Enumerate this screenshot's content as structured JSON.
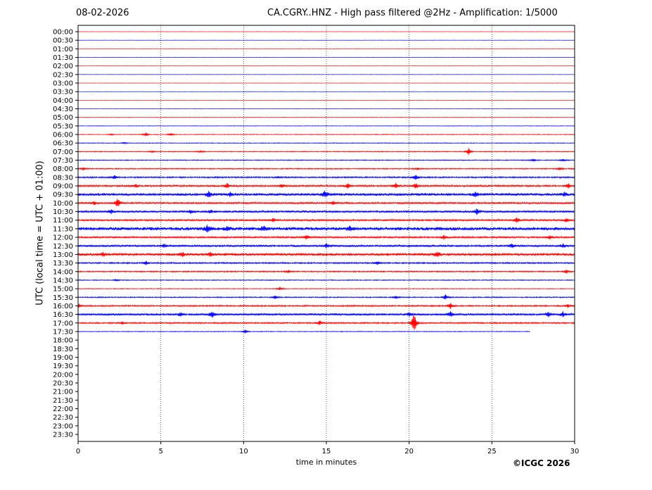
{
  "header": {
    "date": "08-02-2026",
    "title": "CA.CGRY..HNZ - High pass filtered @2Hz - Amplification: 1/5000"
  },
  "footer": {
    "copyright": "©ICGC 2026"
  },
  "chart_data": {
    "type": "line",
    "title": "CA.CGRY..HNZ - High pass filtered @2Hz - Amplification: 1/5000",
    "xlabel": "time in minutes",
    "ylabel": "UTC (local time = UTC + 01:00)",
    "xlim": [
      0,
      30
    ],
    "xticks": [
      0,
      5,
      10,
      15,
      20,
      25,
      30
    ],
    "yticks": [
      "00:00",
      "00:30",
      "01:00",
      "01:30",
      "02:00",
      "02:30",
      "03:00",
      "03:30",
      "04:00",
      "04:30",
      "05:00",
      "05:30",
      "06:00",
      "06:30",
      "07:00",
      "07:30",
      "08:00",
      "08:30",
      "09:00",
      "09:30",
      "10:00",
      "10:30",
      "11:00",
      "11:30",
      "12:00",
      "12:30",
      "13:00",
      "13:30",
      "14:00",
      "14:30",
      "15:00",
      "15:30",
      "16:00",
      "16:30",
      "17:00",
      "17:30",
      "18:00",
      "18:30",
      "19:00",
      "19:30",
      "20:00",
      "20:30",
      "21:00",
      "21:30",
      "22:00",
      "22:30",
      "23:00",
      "23:30"
    ],
    "grid_x": true,
    "colors": {
      "even_rows": "#ff0000",
      "odd_rows": "#0000ff"
    },
    "rows": [
      {
        "label": "00:00",
        "end": 30,
        "noise": 0.2,
        "events": []
      },
      {
        "label": "00:30",
        "end": 30,
        "noise": 0.2,
        "events": []
      },
      {
        "label": "01:00",
        "end": 30,
        "noise": 0.2,
        "events": []
      },
      {
        "label": "01:30",
        "end": 30,
        "noise": 0.2,
        "events": []
      },
      {
        "label": "02:00",
        "end": 30,
        "noise": 0.2,
        "events": []
      },
      {
        "label": "02:30",
        "end": 30,
        "noise": 0.2,
        "events": []
      },
      {
        "label": "03:00",
        "end": 30,
        "noise": 0.2,
        "events": []
      },
      {
        "label": "03:30",
        "end": 30,
        "noise": 0.2,
        "events": []
      },
      {
        "label": "04:00",
        "end": 30,
        "noise": 0.2,
        "events": []
      },
      {
        "label": "04:30",
        "end": 30,
        "noise": 0.2,
        "events": []
      },
      {
        "label": "05:00",
        "end": 30,
        "noise": 0.3,
        "events": []
      },
      {
        "label": "05:30",
        "end": 30,
        "noise": 0.3,
        "events": []
      },
      {
        "label": "06:00",
        "end": 30,
        "noise": 0.4,
        "events": [
          {
            "t": 4.1,
            "a": 3
          },
          {
            "t": 5.6,
            "a": 2.5
          },
          {
            "t": 2.0,
            "a": 1.2
          }
        ]
      },
      {
        "label": "06:30",
        "end": 30,
        "noise": 0.4,
        "events": [
          {
            "t": 2.8,
            "a": 1.2
          }
        ]
      },
      {
        "label": "07:00",
        "end": 30,
        "noise": 0.5,
        "events": [
          {
            "t": 23.6,
            "a": 6
          },
          {
            "t": 4.5,
            "a": 1.5
          },
          {
            "t": 7.4,
            "a": 1.5
          }
        ]
      },
      {
        "label": "07:30",
        "end": 30,
        "noise": 0.5,
        "events": [
          {
            "t": 27.5,
            "a": 2
          },
          {
            "t": 29.3,
            "a": 2
          }
        ]
      },
      {
        "label": "08:00",
        "end": 30,
        "noise": 0.6,
        "events": [
          {
            "t": 0.3,
            "a": 2.5
          },
          {
            "t": 29.1,
            "a": 2.5
          },
          {
            "t": 20.5,
            "a": 2
          }
        ]
      },
      {
        "label": "08:30",
        "end": 30,
        "noise": 0.8,
        "events": [
          {
            "t": 2.2,
            "a": 3
          },
          {
            "t": 20.4,
            "a": 5
          },
          {
            "t": 12.1,
            "a": 1.5
          }
        ]
      },
      {
        "label": "09:00",
        "end": 30,
        "noise": 1.0,
        "events": [
          {
            "t": 3.5,
            "a": 3
          },
          {
            "t": 9.0,
            "a": 4
          },
          {
            "t": 12.3,
            "a": 3
          },
          {
            "t": 16.3,
            "a": 4
          },
          {
            "t": 19.2,
            "a": 4
          },
          {
            "t": 20.4,
            "a": 4
          },
          {
            "t": 29.6,
            "a": 4
          }
        ]
      },
      {
        "label": "09:30",
        "end": 30,
        "noise": 1.5,
        "events": [
          {
            "t": 7.9,
            "a": 5
          },
          {
            "t": 9.2,
            "a": 3
          },
          {
            "t": 14.9,
            "a": 5
          },
          {
            "t": 24.0,
            "a": 4
          },
          {
            "t": 29.4,
            "a": 3
          }
        ]
      },
      {
        "label": "10:00",
        "end": 30,
        "noise": 1.0,
        "events": [
          {
            "t": 1.0,
            "a": 3
          },
          {
            "t": 2.4,
            "a": 8
          },
          {
            "t": 15.4,
            "a": 3
          }
        ]
      },
      {
        "label": "10:30",
        "end": 30,
        "noise": 1.2,
        "events": [
          {
            "t": 2.0,
            "a": 3
          },
          {
            "t": 6.8,
            "a": 3
          },
          {
            "t": 8.0,
            "a": 3
          },
          {
            "t": 24.1,
            "a": 5
          }
        ]
      },
      {
        "label": "11:00",
        "end": 30,
        "noise": 1.0,
        "events": [
          {
            "t": 11.8,
            "a": 3
          },
          {
            "t": 26.5,
            "a": 4
          },
          {
            "t": 29.5,
            "a": 3
          }
        ]
      },
      {
        "label": "11:30",
        "end": 30,
        "noise": 1.8,
        "events": [
          {
            "t": 7.8,
            "a": 6
          },
          {
            "t": 9.0,
            "a": 4
          },
          {
            "t": 11.2,
            "a": 4
          },
          {
            "t": 16.4,
            "a": 4
          }
        ]
      },
      {
        "label": "12:00",
        "end": 30,
        "noise": 1.0,
        "events": [
          {
            "t": 13.8,
            "a": 4
          },
          {
            "t": 22.1,
            "a": 3
          },
          {
            "t": 28.5,
            "a": 3
          }
        ]
      },
      {
        "label": "12:30",
        "end": 30,
        "noise": 1.2,
        "events": [
          {
            "t": 5.2,
            "a": 3
          },
          {
            "t": 15.0,
            "a": 3
          },
          {
            "t": 26.2,
            "a": 3
          },
          {
            "t": 29.3,
            "a": 3
          }
        ]
      },
      {
        "label": "13:00",
        "end": 30,
        "noise": 1.5,
        "events": [
          {
            "t": 1.5,
            "a": 3
          },
          {
            "t": 6.3,
            "a": 3
          },
          {
            "t": 8.0,
            "a": 3
          },
          {
            "t": 21.7,
            "a": 4
          }
        ]
      },
      {
        "label": "13:30",
        "end": 30,
        "noise": 0.8,
        "events": [
          {
            "t": 4.1,
            "a": 3
          },
          {
            "t": 18.1,
            "a": 3
          }
        ]
      },
      {
        "label": "14:00",
        "end": 30,
        "noise": 0.7,
        "events": [
          {
            "t": 29.5,
            "a": 3
          },
          {
            "t": 12.7,
            "a": 2
          }
        ]
      },
      {
        "label": "14:30",
        "end": 30,
        "noise": 0.5,
        "events": [
          {
            "t": 2.3,
            "a": 1.5
          }
        ]
      },
      {
        "label": "15:00",
        "end": 30,
        "noise": 0.4,
        "events": [
          {
            "t": 12.2,
            "a": 3
          }
        ]
      },
      {
        "label": "15:30",
        "end": 30,
        "noise": 0.6,
        "events": [
          {
            "t": 11.9,
            "a": 3
          },
          {
            "t": 19.2,
            "a": 3
          },
          {
            "t": 22.2,
            "a": 4
          }
        ]
      },
      {
        "label": "16:00",
        "end": 30,
        "noise": 0.8,
        "events": [
          {
            "t": 0.0,
            "a": 4
          },
          {
            "t": 22.5,
            "a": 5
          },
          {
            "t": 29.6,
            "a": 3
          }
        ]
      },
      {
        "label": "16:30",
        "end": 30,
        "noise": 1.2,
        "events": [
          {
            "t": 6.2,
            "a": 3
          },
          {
            "t": 8.1,
            "a": 5
          },
          {
            "t": 20.0,
            "a": 3
          },
          {
            "t": 22.5,
            "a": 4
          },
          {
            "t": 28.4,
            "a": 4
          },
          {
            "t": 29.3,
            "a": 4
          }
        ]
      },
      {
        "label": "17:00",
        "end": 30,
        "noise": 0.8,
        "events": [
          {
            "t": 20.3,
            "a": 16
          },
          {
            "t": 14.6,
            "a": 4
          },
          {
            "t": 2.7,
            "a": 2
          }
        ]
      },
      {
        "label": "17:30",
        "end": 27.3,
        "noise": 0.4,
        "events": [
          {
            "t": 10.1,
            "a": 3
          }
        ]
      }
    ]
  }
}
